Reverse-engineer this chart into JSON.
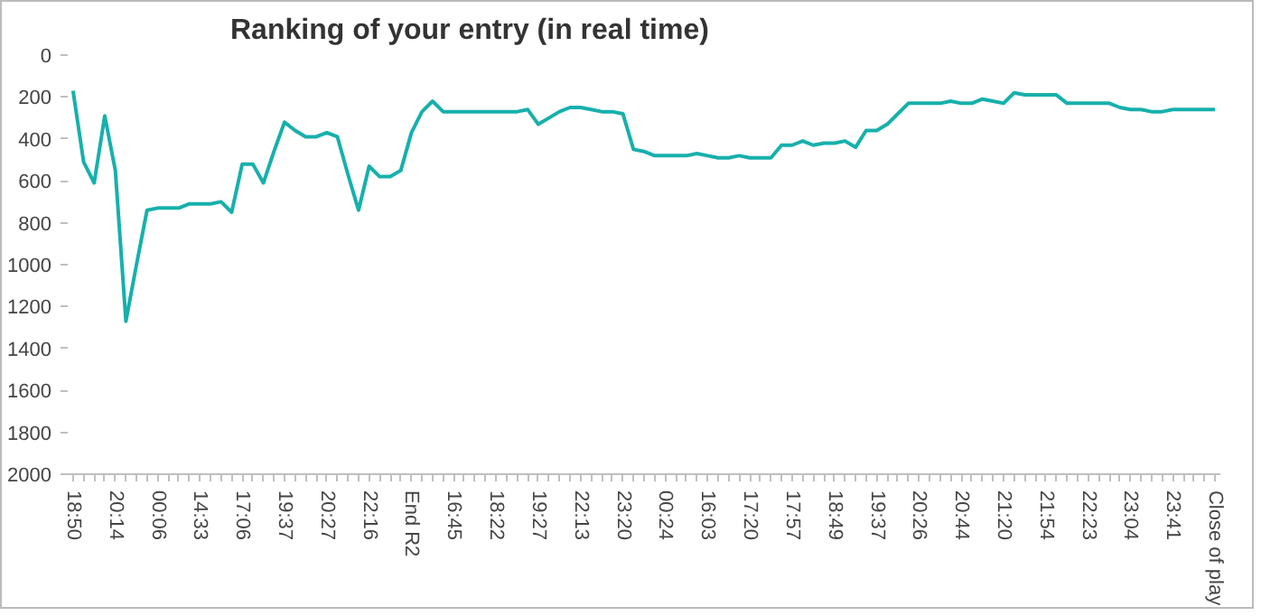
{
  "chart_data": {
    "type": "line",
    "title": "Ranking of your entry (in real time)",
    "categories": [
      "18:50",
      null,
      null,
      null,
      "20:14",
      null,
      null,
      null,
      "00:06",
      null,
      null,
      null,
      "14:33",
      null,
      null,
      null,
      "17:06",
      null,
      null,
      null,
      "19:37",
      null,
      null,
      null,
      "20:27",
      null,
      null,
      null,
      "22:16",
      null,
      null,
      null,
      "End R2",
      null,
      null,
      null,
      "16:45",
      null,
      null,
      null,
      "18:22",
      null,
      null,
      null,
      "19:27",
      null,
      null,
      null,
      "22:13",
      null,
      null,
      null,
      "23:20",
      null,
      null,
      null,
      "00:24",
      null,
      null,
      null,
      "16:03",
      null,
      null,
      null,
      "17:20",
      null,
      null,
      null,
      "17:57",
      null,
      null,
      null,
      "18:49",
      null,
      null,
      null,
      "19:37",
      null,
      null,
      null,
      "20:26",
      null,
      null,
      null,
      "20:44",
      null,
      null,
      null,
      "21:20",
      null,
      null,
      null,
      "21:54",
      null,
      null,
      null,
      "22:23",
      null,
      null,
      null,
      "23:04",
      null,
      null,
      null,
      "23:41",
      null,
      null,
      null,
      "Close of play"
    ],
    "series": [
      {
        "color": "#17b0ac",
        "values": [
          170,
          510,
          610,
          290,
          550,
          1270,
          1000,
          740,
          730,
          730,
          730,
          710,
          710,
          710,
          700,
          750,
          520,
          520,
          610,
          460,
          320,
          360,
          390,
          390,
          370,
          390,
          570,
          740,
          530,
          580,
          580,
          550,
          370,
          270,
          220,
          270,
          270,
          270,
          270,
          270,
          270,
          270,
          270,
          260,
          330,
          300,
          270,
          250,
          250,
          260,
          270,
          270,
          280,
          450,
          460,
          480,
          480,
          480,
          480,
          470,
          480,
          490,
          490,
          480,
          490,
          490,
          490,
          430,
          430,
          410,
          430,
          420,
          420,
          410,
          440,
          360,
          360,
          330,
          280,
          230,
          230,
          230,
          230,
          220,
          230,
          230,
          210,
          220,
          230,
          180,
          190,
          190,
          190,
          190,
          230,
          230,
          230,
          230,
          230,
          250,
          260,
          260,
          270,
          270,
          260,
          260,
          260,
          260,
          260
        ]
      }
    ],
    "ylim": [
      2000,
      0
    ],
    "yticks": [
      0,
      200,
      400,
      600,
      800,
      1000,
      1200,
      1400,
      1600,
      1800,
      2000
    ],
    "grid": false,
    "marker": "none",
    "line_style": "solid"
  }
}
